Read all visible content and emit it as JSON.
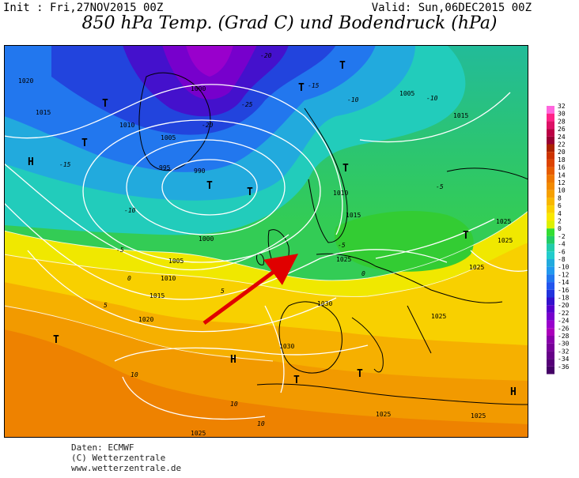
{
  "header": {
    "init": "Init : Fri,27NOV2015 00Z",
    "valid": "Valid: Sun,06DEC2015 00Z",
    "title": "850 hPa Temp. (Grad C) und Bodendruck (hPa)"
  },
  "map": {
    "pressure_centers": [
      {
        "symbol": "T",
        "kind": "low"
      },
      {
        "symbol": "T",
        "kind": "low"
      },
      {
        "symbol": "T",
        "kind": "low"
      },
      {
        "symbol": "T",
        "kind": "low"
      },
      {
        "symbol": "T",
        "kind": "low"
      },
      {
        "symbol": "T",
        "kind": "low"
      },
      {
        "symbol": "T",
        "kind": "low"
      },
      {
        "symbol": "T",
        "kind": "low"
      },
      {
        "symbol": "T",
        "kind": "low"
      },
      {
        "symbol": "T",
        "kind": "low"
      },
      {
        "symbol": "T",
        "kind": "low"
      },
      {
        "symbol": "H",
        "kind": "high"
      },
      {
        "symbol": "H",
        "kind": "high"
      },
      {
        "symbol": "H",
        "kind": "high"
      }
    ],
    "isobar_labels": [
      "1020",
      "1015",
      "1010",
      "1005",
      "1000",
      "995",
      "990",
      "1000",
      "1005",
      "1010",
      "1015",
      "1020",
      "1030",
      "1030",
      "1025",
      "1025",
      "1025",
      "1025",
      "1025",
      "1005",
      "1015",
      "1010",
      "1015",
      "1025",
      "1025",
      "1025"
    ],
    "isotherm_labels": [
      "-20",
      "-15",
      "-10",
      "-5",
      "0",
      "5",
      "-5",
      "0",
      "5",
      "-10",
      "-15",
      "-20",
      "-25",
      "10",
      "10",
      "10",
      "-5",
      "-10"
    ],
    "annotation": {
      "type": "arrow",
      "color": "#e00000"
    }
  },
  "legend": {
    "unit": "Grad C",
    "labels": [
      "32",
      "30",
      "28",
      "26",
      "24",
      "22",
      "20",
      "18",
      "16",
      "14",
      "12",
      "10",
      "8",
      "6",
      "4",
      "2",
      "0",
      "-2",
      "-4",
      "-6",
      "-8",
      "-10",
      "-12",
      "-14",
      "-16",
      "-18",
      "-20",
      "-22",
      "-24",
      "-26",
      "-28",
      "-30",
      "-32",
      "-34",
      "-36"
    ],
    "colors": [
      "#ff66dd",
      "#ff2288",
      "#dd1166",
      "#bb0044",
      "#990033",
      "#aa2200",
      "#cc3300",
      "#dd4400",
      "#e65c00",
      "#ee7700",
      "#f28a00",
      "#f6a000",
      "#f8b800",
      "#fad000",
      "#fae800",
      "#ddf000",
      "#33dd33",
      "#22cc66",
      "#22ccaa",
      "#22cccc",
      "#22aadd",
      "#2299ee",
      "#2277ee",
      "#2255ee",
      "#2233dd",
      "#3311cc",
      "#5500cc",
      "#7700cc",
      "#9900cc",
      "#aa00bb",
      "#8800aa",
      "#770099",
      "#660088",
      "#550077",
      "#440066"
    ]
  },
  "credits": {
    "line1": "Daten: ECMWF",
    "line2": "(C) Wetterzentrale",
    "line3": "www.wetterzentrale.de"
  }
}
